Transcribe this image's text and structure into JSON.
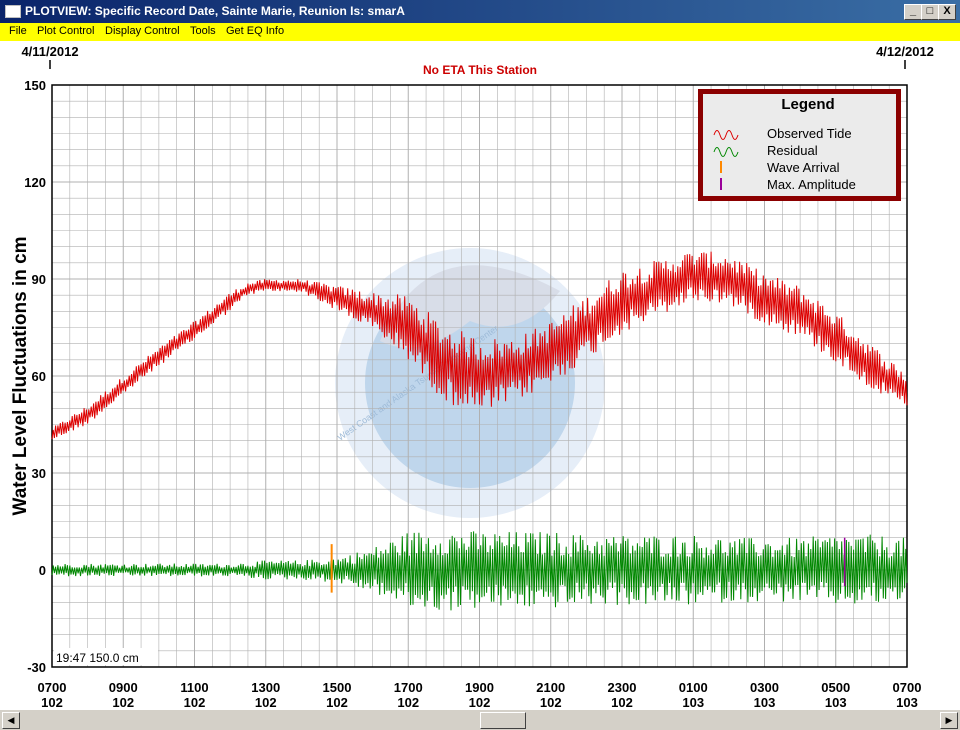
{
  "window": {
    "title": "PLOTVIEW: Specific Record Date, Sainte Marie, Reunion Is: smarA",
    "controls": [
      "_",
      "□",
      "X"
    ]
  },
  "menu": [
    "File",
    "Plot Control",
    "Display Control",
    "Tools",
    "Get EQ Info"
  ],
  "plot": {
    "start_date": "4/11/2012",
    "end_date": "4/12/2012",
    "eta_message": "No ETA This Station",
    "cursor_readout": "19:47 150.0 cm",
    "watermark": "West Coast and Alaska Tsunami Warning Center",
    "colors": {
      "observed": "#dd0000",
      "residual": "#008800",
      "wave_arrival": "#ff8800",
      "max_amplitude": "#990099",
      "grid": "#b0b0b0",
      "watermark": "#a8c8e8"
    }
  },
  "legend": {
    "title": "Legend",
    "items": [
      "Observed Tide",
      "Residual",
      "Wave Arrival",
      "Max. Amplitude"
    ]
  },
  "chart_data": {
    "type": "line",
    "title": "No ETA This Station",
    "ylabel": "Water Level Fluctuations in cm",
    "xlabel": "",
    "ylim": [
      -30,
      150
    ],
    "yticks": [
      -30,
      0,
      30,
      60,
      90,
      120,
      150
    ],
    "xticks": [
      {
        "time": "0700",
        "day": "102"
      },
      {
        "time": "0900",
        "day": "102"
      },
      {
        "time": "1100",
        "day": "102"
      },
      {
        "time": "1300",
        "day": "102"
      },
      {
        "time": "1500",
        "day": "102"
      },
      {
        "time": "1700",
        "day": "102"
      },
      {
        "time": "1900",
        "day": "102"
      },
      {
        "time": "2100",
        "day": "102"
      },
      {
        "time": "2300",
        "day": "102"
      },
      {
        "time": "0100",
        "day": "103"
      },
      {
        "time": "0300",
        "day": "103"
      },
      {
        "time": "0500",
        "day": "103"
      },
      {
        "time": "0700",
        "day": "103"
      }
    ],
    "x_hours": [
      7,
      31
    ],
    "series": [
      {
        "name": "Observed Tide",
        "x": [
          7,
          8,
          9,
          10,
          11,
          12,
          12.5,
          13,
          14,
          15,
          16,
          17,
          18,
          19,
          20,
          21,
          22,
          23,
          24,
          25,
          26,
          27,
          28,
          29,
          30,
          31
        ],
        "mean": [
          42,
          48,
          57,
          66,
          74,
          83,
          87,
          88,
          88,
          84,
          80,
          75,
          64,
          60,
          62,
          67,
          75,
          83,
          87,
          91,
          90,
          84,
          80,
          72,
          63,
          55
        ],
        "noise": [
          2,
          3,
          3,
          3,
          3,
          3,
          2,
          2,
          2,
          4,
          6,
          10,
          12,
          12,
          10,
          10,
          10,
          10,
          9,
          8,
          8,
          8,
          8,
          8,
          7,
          6
        ]
      },
      {
        "name": "Residual",
        "x": [
          7,
          8,
          9,
          10,
          11,
          12,
          13,
          14,
          15,
          16,
          17,
          18,
          19,
          20,
          21,
          22,
          23,
          24,
          25,
          26,
          27,
          28,
          29,
          30,
          31
        ],
        "mean": [
          0,
          0,
          0,
          0,
          0,
          0,
          0,
          0,
          0,
          0,
          0,
          0,
          0,
          0,
          0,
          0,
          0,
          0,
          0,
          0,
          0,
          0,
          0,
          0,
          0
        ],
        "noise": [
          2,
          2,
          2,
          2,
          2,
          2,
          3,
          3,
          4,
          7,
          12,
          13,
          12,
          12,
          12,
          11,
          11,
          11,
          11,
          10,
          10,
          10,
          11,
          11,
          10
        ]
      }
    ],
    "wave_arrival": {
      "x": 14.85,
      "y_range": [
        -7,
        8
      ]
    },
    "max_amplitude": {
      "x": 29.25,
      "y_range": [
        -5,
        10
      ]
    },
    "grid": true,
    "legend_position": "top-right"
  }
}
